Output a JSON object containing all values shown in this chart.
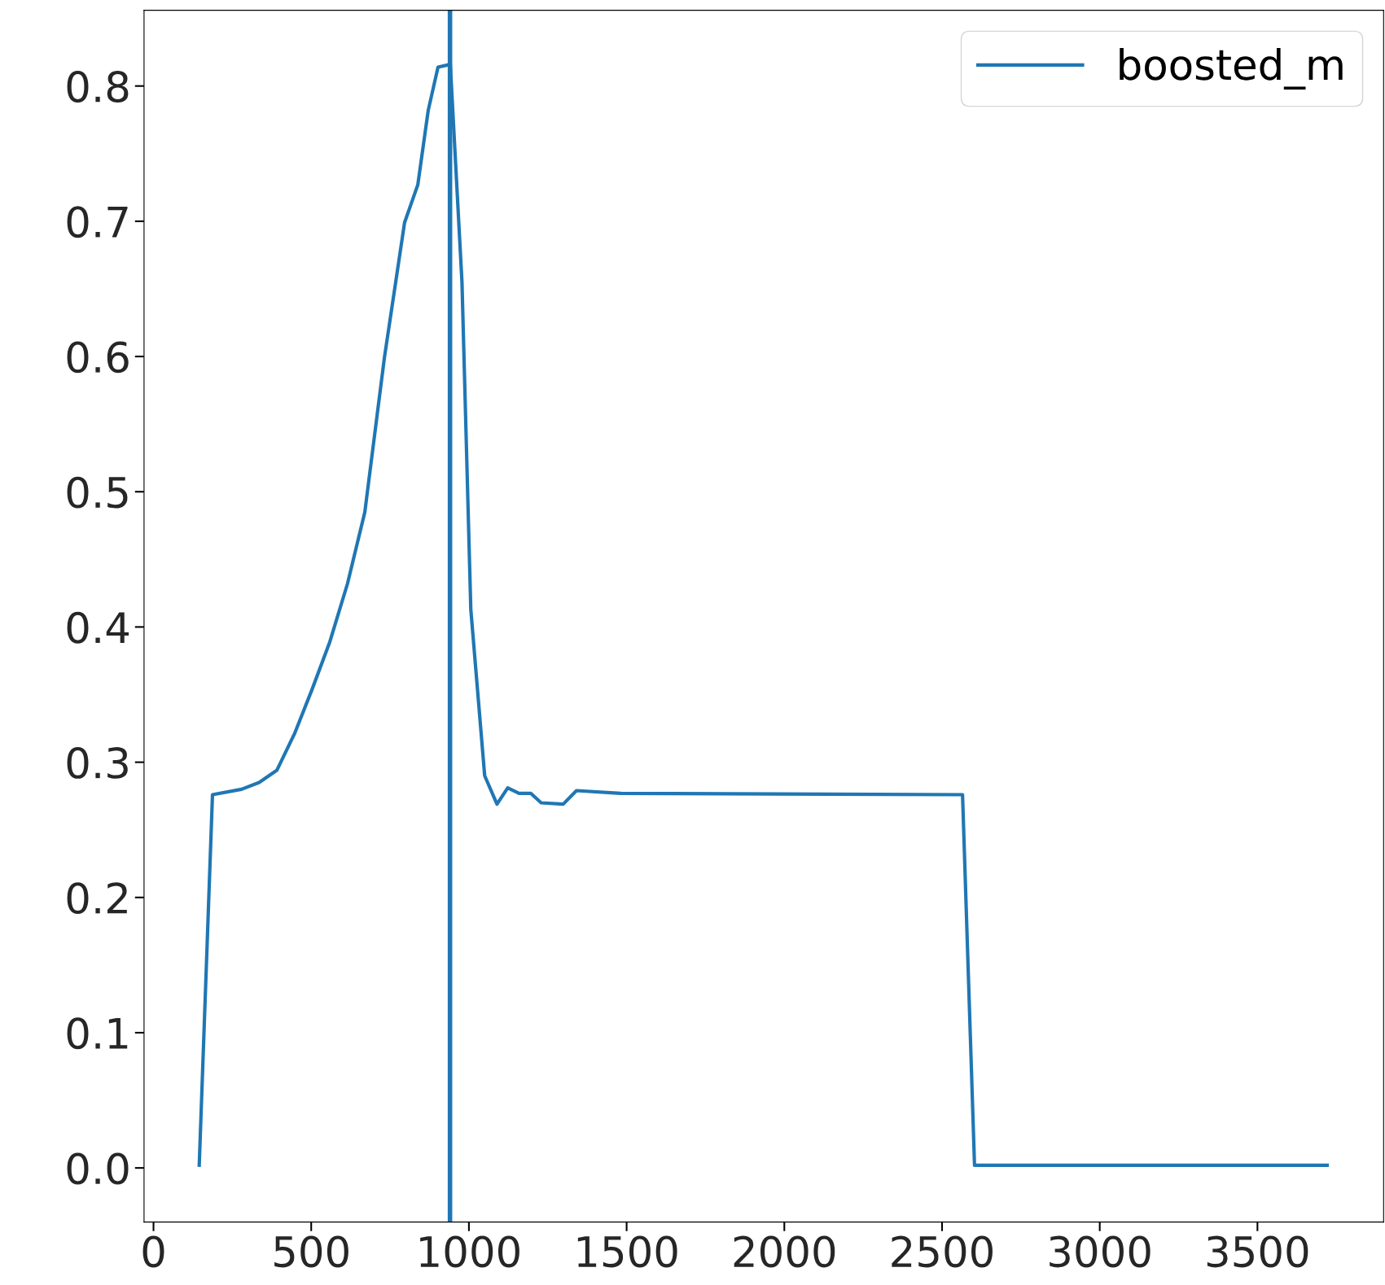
{
  "chart_data": {
    "type": "line",
    "x": [
      145,
      187,
      279,
      335,
      391,
      447,
      503,
      559,
      615,
      670,
      732,
      796,
      838,
      871,
      902,
      941,
      978,
      1006,
      1050,
      1089,
      1123,
      1159,
      1196,
      1229,
      1299,
      1341,
      1481,
      2565,
      2603,
      3721
    ],
    "series": [
      {
        "name": "boosted_m",
        "color": "#1f77b4",
        "values": [
          0.002,
          0.276,
          0.28,
          0.285,
          0.294,
          0.321,
          0.354,
          0.389,
          0.432,
          0.485,
          0.599,
          0.699,
          0.727,
          0.782,
          0.814,
          0.816,
          0.655,
          0.413,
          0.29,
          0.269,
          0.281,
          0.277,
          0.277,
          0.27,
          0.269,
          0.279,
          0.277,
          0.276,
          0.002,
          0.002
        ]
      }
    ],
    "ref_lines": [
      {
        "axis": "x",
        "value": 940,
        "color": "#1f77b4"
      }
    ],
    "xlim": [
      -30,
      3900
    ],
    "ylim": [
      -0.04,
      0.856
    ],
    "xticks": [
      0,
      500,
      1000,
      1500,
      2000,
      2500,
      3000,
      3500
    ],
    "yticks": [
      {
        "value": 0,
        "label": "0.0"
      },
      0.1,
      0.2,
      0.3,
      0.4,
      0.5,
      0.6,
      0.7,
      0.8
    ],
    "grid": false,
    "legend": "top right",
    "line_style": "solid",
    "marker": "none"
  }
}
